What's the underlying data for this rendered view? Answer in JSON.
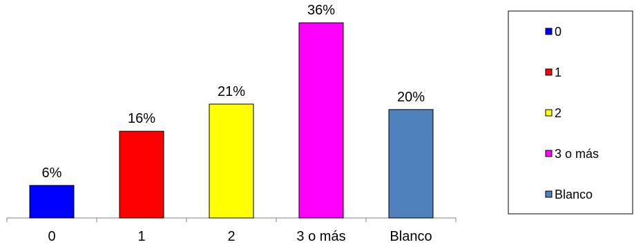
{
  "chart_data": {
    "type": "bar",
    "categories": [
      "0",
      "1",
      "2",
      "3 o más",
      "Blanco"
    ],
    "values": [
      6,
      16,
      21,
      36,
      20
    ],
    "value_suffix": "%",
    "colors": [
      "#0000FF",
      "#FF0000",
      "#FFFF00",
      "#FF00FF",
      "#4F81BD"
    ],
    "ylim": [
      0,
      40
    ],
    "grid": false,
    "legend": {
      "placement": "right",
      "entries": [
        "0",
        "1",
        "2",
        "3 o más",
        "Blanco"
      ]
    }
  }
}
